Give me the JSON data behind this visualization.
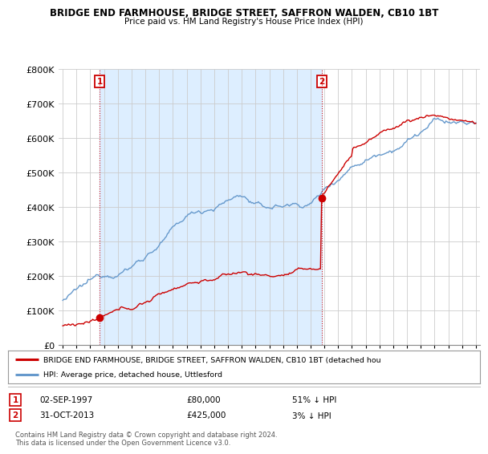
{
  "title": "BRIDGE END FARMHOUSE, BRIDGE STREET, SAFFRON WALDEN, CB10 1BT",
  "subtitle": "Price paid vs. HM Land Registry's House Price Index (HPI)",
  "sale1_date": "02-SEP-1997",
  "sale1_price": 80000,
  "sale1_year": 1997.67,
  "sale2_date": "31-OCT-2013",
  "sale2_price": 425000,
  "sale2_year": 2013.83,
  "legend_red": "BRIDGE END FARMHOUSE, BRIDGE STREET, SAFFRON WALDEN, CB10 1BT (detached hou",
  "legend_blue": "HPI: Average price, detached house, Uttlesford",
  "table_row1": [
    "1",
    "02-SEP-1997",
    "£80,000",
    "51% ↓ HPI"
  ],
  "table_row2": [
    "2",
    "31-OCT-2013",
    "£425,000",
    "3% ↓ HPI"
  ],
  "footnote": "Contains HM Land Registry data © Crown copyright and database right 2024.\nThis data is licensed under the Open Government Licence v3.0.",
  "red_color": "#cc0000",
  "blue_color": "#6699cc",
  "shade_color": "#ddeeff",
  "bg_color": "#ffffff",
  "ylim": [
    0,
    800000
  ],
  "xlim_start": 1994.7,
  "xlim_end": 2025.3
}
